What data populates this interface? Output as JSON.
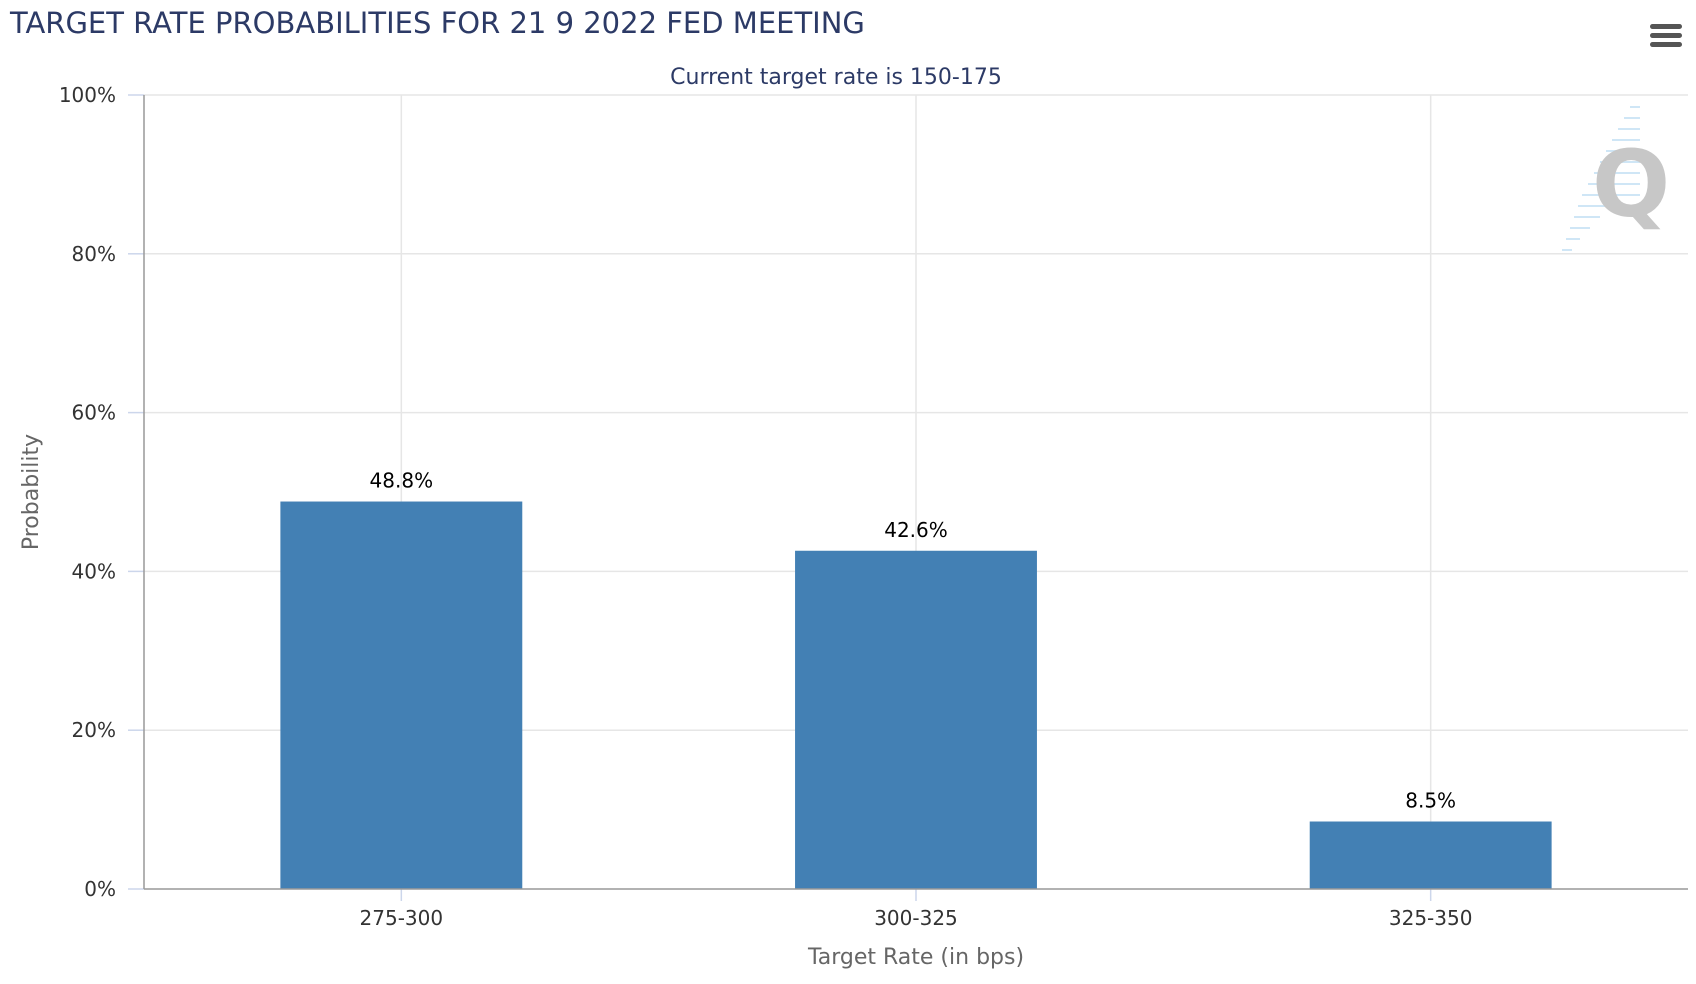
{
  "header": {
    "title": "TARGET RATE PROBABILITIES FOR 21 9 2022 FED MEETING",
    "menu_icon": "hamburger-menu-icon"
  },
  "watermark": {
    "text": "Q",
    "icon": "quikstrike-logo-icon"
  },
  "chart_data": {
    "type": "bar",
    "title": "TARGET RATE PROBABILITIES FOR 21 9 2022 FED MEETING",
    "subtitle": "Current target rate is 150-175",
    "xlabel": "Target Rate (in bps)",
    "ylabel": "Probability",
    "categories": [
      "275-300",
      "300-325",
      "325-350"
    ],
    "values": [
      48.8,
      42.6,
      8.5
    ],
    "data_labels": [
      "48.8%",
      "42.6%",
      "8.5%"
    ],
    "ylim": [
      0,
      100
    ],
    "yticks": [
      0,
      20,
      40,
      60,
      80,
      100
    ],
    "ytick_labels": [
      "0%",
      "20%",
      "40%",
      "60%",
      "80%",
      "100%"
    ],
    "grid": true,
    "legend": "none",
    "bar_color": "#4380b4"
  }
}
